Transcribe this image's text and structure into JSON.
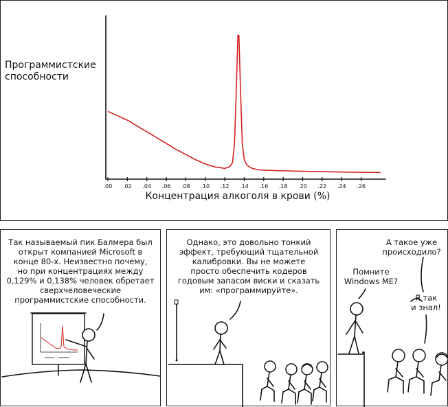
{
  "chart_data": {
    "type": "line",
    "ylabel": "Программистские способности",
    "xlabel": "Концентрация алкоголя в крови (%)",
    "x_ticks": [
      ".00",
      ".02",
      ".04",
      ".06",
      ".08",
      ".10",
      ".12",
      ".14",
      ".16",
      ".18",
      ".20",
      ".22",
      ".24",
      ".26"
    ],
    "xlim": [
      0,
      0.285
    ],
    "ylim": [
      0,
      1
    ],
    "grid": false,
    "series": [
      {
        "color": "#d42020",
        "x": [
          0,
          0.01,
          0.02,
          0.03,
          0.04,
          0.05,
          0.06,
          0.07,
          0.08,
          0.09,
          0.1,
          0.11,
          0.12,
          0.125,
          0.128,
          0.13,
          0.132,
          0.1335,
          0.1345,
          0.136,
          0.138,
          0.14,
          0.143,
          0.148,
          0.155,
          0.17,
          0.2,
          0.24,
          0.28
        ],
        "y": [
          0.44,
          0.41,
          0.38,
          0.34,
          0.3,
          0.26,
          0.22,
          0.18,
          0.145,
          0.11,
          0.08,
          0.06,
          0.05,
          0.06,
          0.09,
          0.22,
          0.62,
          0.96,
          0.96,
          0.62,
          0.22,
          0.11,
          0.07,
          0.05,
          0.04,
          0.035,
          0.03,
          0.025,
          0.022
        ]
      }
    ]
  },
  "panel1": {
    "caption": [
      "Так называемый пик Балмера был",
      "открыт компанией Microsoft в",
      "конце 80-х. Неизвестно почему,",
      "но при концентрациях между",
      "0,129% и 0,138% человек обретает",
      "сверхчеловеческие",
      "программистские способности."
    ]
  },
  "panel2": {
    "caption": [
      "Однако, это довольно тонкий",
      "эффект, требующий тщательной",
      "калибровки. Вы не можете",
      "просто обеспечить кодеров",
      "годовым запасом виски и сказать",
      "им: «программируйте»."
    ]
  },
  "panel3": {
    "top_line1": "А такое уже",
    "top_line2": "происходило?",
    "left_line1": "Помните",
    "left_line2": "Windows ME?",
    "right_line1": "Я так",
    "right_line2": "и знал!"
  }
}
